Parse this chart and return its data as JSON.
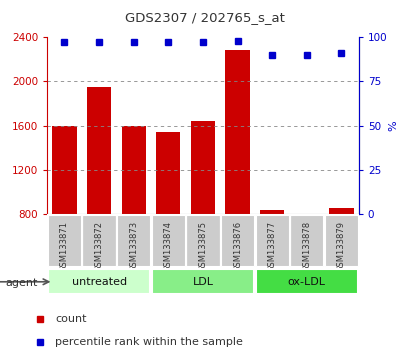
{
  "title": "GDS2307 / 202765_s_at",
  "samples": [
    "GSM133871",
    "GSM133872",
    "GSM133873",
    "GSM133874",
    "GSM133875",
    "GSM133876",
    "GSM133877",
    "GSM133878",
    "GSM133879"
  ],
  "counts": [
    1600,
    1950,
    1600,
    1540,
    1640,
    2280,
    840,
    800,
    860
  ],
  "percentiles": [
    97,
    97,
    97,
    97,
    97,
    98,
    90,
    90,
    91
  ],
  "ylim_left": [
    800,
    2400
  ],
  "ylim_right": [
    0,
    100
  ],
  "yticks_left": [
    800,
    1200,
    1600,
    2000,
    2400
  ],
  "yticks_right": [
    0,
    25,
    50,
    75,
    100
  ],
  "groups": [
    {
      "label": "untreated",
      "start": 0,
      "end": 3,
      "color": "#ccffcc"
    },
    {
      "label": "LDL",
      "start": 3,
      "end": 6,
      "color": "#88ee88"
    },
    {
      "label": "ox-LDL",
      "start": 6,
      "end": 9,
      "color": "#44dd44"
    }
  ],
  "bar_color": "#cc0000",
  "dot_color": "#0000cc",
  "sample_label_color": "#333333",
  "left_axis_color": "#cc0000",
  "right_axis_color": "#0000cc",
  "title_color": "#333333",
  "grid_color": "#888888",
  "sample_bg_color": "#cccccc",
  "legend_count_color": "#cc0000",
  "legend_pct_color": "#0000cc",
  "fig_width": 4.1,
  "fig_height": 3.54,
  "dpi": 100
}
